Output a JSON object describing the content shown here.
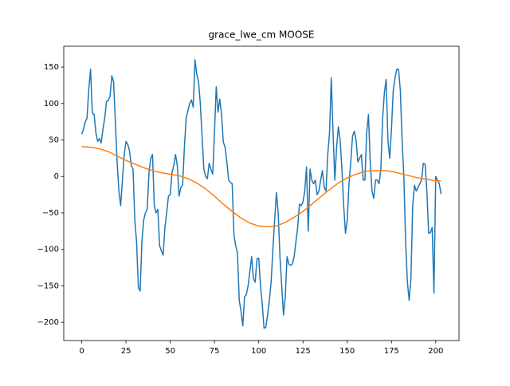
{
  "chart_data": {
    "type": "line",
    "title": "grace_lwe_cm MOOSE",
    "xlim": [
      -10.15,
      213.15
    ],
    "ylim": [
      -225,
      178.5
    ],
    "xticks": [
      0,
      25,
      50,
      75,
      100,
      125,
      150,
      175,
      200
    ],
    "yticks": [
      {
        "value": -200,
        "label": "−200"
      },
      {
        "value": -150,
        "label": "−150"
      },
      {
        "value": -100,
        "label": "−100"
      },
      {
        "value": -50,
        "label": "−50"
      },
      0,
      50,
      100,
      150
    ],
    "grid": false,
    "series": [
      {
        "color": "#1f77b4",
        "x": [
          0,
          1,
          2,
          3,
          4,
          5,
          6,
          7,
          8,
          9,
          10,
          11,
          12,
          13,
          14,
          15,
          16,
          17,
          18,
          19,
          20,
          21,
          22,
          23,
          24,
          25,
          26,
          27,
          28,
          29,
          30,
          31,
          32,
          33,
          34,
          35,
          36,
          37,
          38,
          39,
          40,
          41,
          42,
          43,
          44,
          45,
          46,
          47,
          48,
          49,
          50,
          51,
          52,
          53,
          54,
          55,
          56,
          57,
          58,
          59,
          60,
          61,
          62,
          63,
          64,
          65,
          66,
          67,
          68,
          69,
          70,
          71,
          72,
          73,
          74,
          75,
          76,
          77,
          78,
          79,
          80,
          81,
          82,
          83,
          84,
          85,
          86,
          87,
          88,
          89,
          90,
          91,
          92,
          93,
          94,
          95,
          96,
          97,
          98,
          99,
          100,
          101,
          102,
          103,
          104,
          105,
          106,
          107,
          108,
          109,
          110,
          111,
          112,
          113,
          114,
          115,
          116,
          117,
          118,
          119,
          120,
          121,
          122,
          123,
          124,
          125,
          126,
          127,
          128,
          129,
          130,
          131,
          132,
          133,
          134,
          135,
          136,
          137,
          138,
          139,
          140,
          141,
          142,
          143,
          144,
          145,
          146,
          147,
          148,
          149,
          150,
          151,
          152,
          153,
          154,
          155,
          156,
          157,
          158,
          159,
          160,
          161,
          162,
          163,
          164,
          165,
          166,
          167,
          168,
          169,
          170,
          171,
          172,
          173,
          174,
          175,
          176,
          177,
          178,
          179,
          180,
          181,
          182,
          183,
          184,
          185,
          186,
          187,
          188,
          189,
          190,
          191,
          192,
          193,
          194,
          195,
          196,
          197,
          198,
          199,
          200,
          201,
          202,
          203
        ],
        "values": [
          58,
          65,
          75,
          80,
          120,
          147,
          87,
          85,
          60,
          48,
          52,
          46,
          65,
          80,
          103,
          104,
          110,
          138,
          130,
          75,
          20,
          -20,
          -40,
          -5,
          30,
          48,
          44,
          35,
          15,
          10,
          -60,
          -90,
          -152,
          -157,
          -90,
          -60,
          -50,
          -45,
          5,
          25,
          30,
          -40,
          -50,
          -45,
          -95,
          -102,
          -108,
          -70,
          -50,
          -27,
          -25,
          5,
          15,
          30,
          15,
          -27,
          -15,
          -12,
          40,
          80,
          90,
          100,
          105,
          95,
          160,
          140,
          130,
          100,
          55,
          10,
          0,
          -3,
          18,
          10,
          3,
          60,
          123,
          88,
          106,
          85,
          47,
          40,
          20,
          -5,
          -8,
          -10,
          -80,
          -95,
          -105,
          -170,
          -185,
          -205,
          -165,
          -162,
          -150,
          -130,
          -110,
          -140,
          -145,
          -113,
          -112,
          -150,
          -175,
          -208,
          -207,
          -190,
          -170,
          -145,
          -100,
          -60,
          -22,
          -50,
          -110,
          -150,
          -190,
          -165,
          -110,
          -120,
          -122,
          -120,
          -110,
          -90,
          -70,
          -38,
          -40,
          -35,
          -20,
          13,
          -75,
          10,
          -5,
          -10,
          -5,
          -25,
          -20,
          -5,
          8,
          -15,
          -20,
          30,
          60,
          135,
          60,
          -5,
          40,
          68,
          50,
          10,
          -40,
          -78,
          -60,
          -10,
          20,
          55,
          62,
          50,
          20,
          25,
          30,
          -5,
          -5,
          60,
          85,
          20,
          -20,
          -30,
          -5,
          -5,
          -10,
          10,
          80,
          115,
          133,
          50,
          25,
          65,
          118,
          135,
          147,
          147,
          118,
          50,
          0,
          -90,
          -145,
          -170,
          -140,
          -40,
          -12,
          -20,
          -15,
          -10,
          -5,
          18,
          17,
          -20,
          -78,
          -77,
          -70,
          -160,
          0,
          -5,
          -10,
          -24
        ]
      },
      {
        "color": "#ff7f0e",
        "x": [
          0,
          5,
          10,
          15,
          20,
          25,
          30,
          35,
          40,
          45,
          50,
          55,
          60,
          65,
          70,
          75,
          80,
          85,
          90,
          95,
          100,
          105,
          110,
          115,
          120,
          125,
          130,
          135,
          140,
          145,
          150,
          155,
          160,
          165,
          170,
          175,
          180,
          185,
          190,
          195,
          200,
          203
        ],
        "values": [
          41,
          40,
          38,
          34,
          28,
          22,
          17,
          12,
          8,
          5,
          3,
          1,
          -3,
          -9,
          -17,
          -27,
          -38,
          -48,
          -57,
          -64,
          -68,
          -69,
          -68,
          -63,
          -56,
          -48,
          -38,
          -28,
          -18,
          -9,
          -2,
          3,
          7,
          8,
          8,
          7,
          4,
          1,
          -2,
          -4,
          -6,
          -6
        ]
      }
    ]
  }
}
